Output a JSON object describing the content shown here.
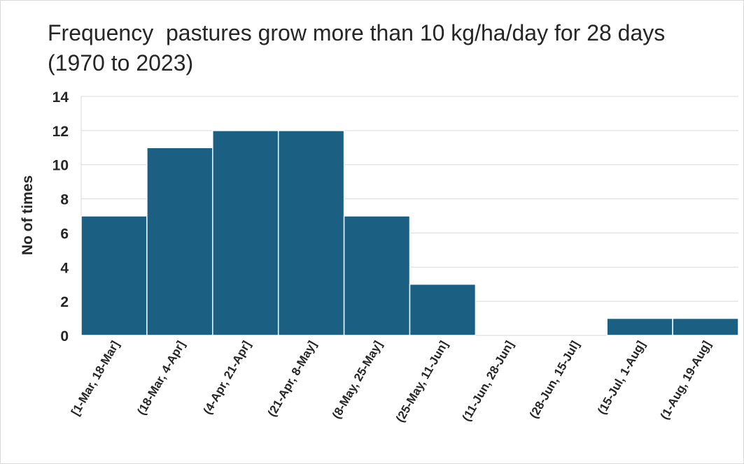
{
  "chart_data": {
    "type": "bar",
    "title": "Frequency  pastures grow more than 10 kg/ha/day for 28 days\n(1970 to 2023)",
    "xlabel": "",
    "ylabel": "No of times",
    "ylim": [
      0,
      14
    ],
    "yticks": [
      0,
      2,
      4,
      6,
      8,
      10,
      12,
      14
    ],
    "grid": true,
    "legend": "none",
    "bar_color": "#1b6083",
    "categories": [
      "[1-Mar, 18-Mar]",
      "(18-Mar, 4-Apr]",
      "(4-Apr, 21-Apr]",
      "(21-Apr, 8-May]",
      "(8-May, 25-May]",
      "(25-May, 11-Jun]",
      "(11-Jun, 28-Jun]",
      "(28-Jun, 15-Jul]",
      "(15-Jul, 1-Aug]",
      "(1-Aug, 19-Aug]"
    ],
    "values": [
      7,
      11,
      12,
      12,
      7,
      3,
      0,
      0,
      1,
      1
    ]
  }
}
